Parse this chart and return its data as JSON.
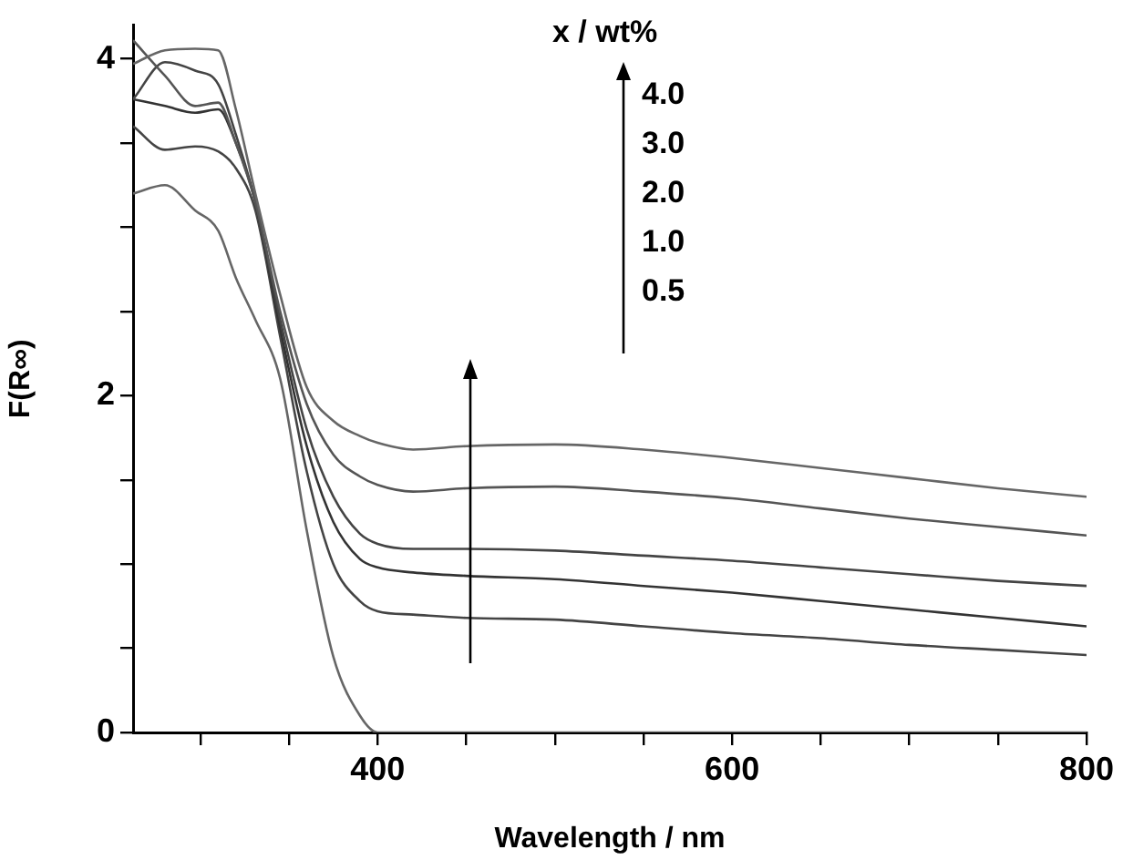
{
  "chart_data": {
    "type": "line",
    "xlabel": "Wavelength / nm",
    "ylabel": "F(R∞)",
    "x": [
      262,
      280,
      297,
      310,
      320,
      331,
      345,
      360,
      375,
      390,
      400,
      420,
      450,
      500,
      550,
      600,
      650,
      700,
      750,
      800
    ],
    "series": [
      {
        "color": "#666666",
        "values": [
          3.97,
          4.05,
          4.06,
          4.05,
          3.7,
          3.2,
          2.6,
          2.05,
          1.85,
          1.76,
          1.72,
          1.68,
          1.7,
          1.71,
          1.68,
          1.63,
          1.57,
          1.51,
          1.45,
          1.4
        ]
      },
      {
        "color": "#555555",
        "values": [
          4.11,
          3.9,
          3.72,
          3.74,
          3.5,
          3.15,
          2.5,
          1.95,
          1.65,
          1.52,
          1.47,
          1.43,
          1.45,
          1.46,
          1.43,
          1.39,
          1.33,
          1.27,
          1.22,
          1.17
        ]
      },
      {
        "color": "#444444",
        "values": [
          3.76,
          3.98,
          3.93,
          3.85,
          3.55,
          3.15,
          2.45,
          1.8,
          1.4,
          1.18,
          1.12,
          1.09,
          1.09,
          1.08,
          1.05,
          1.02,
          0.98,
          0.94,
          0.9,
          0.87
        ]
      },
      {
        "color": "#333333",
        "values": [
          3.76,
          3.72,
          3.68,
          3.7,
          3.5,
          3.15,
          2.4,
          1.7,
          1.25,
          1.03,
          0.98,
          0.95,
          0.93,
          0.91,
          0.87,
          0.83,
          0.78,
          0.73,
          0.68,
          0.63
        ]
      },
      {
        "color": "#444444",
        "values": [
          3.6,
          3.46,
          3.48,
          3.45,
          3.35,
          3.1,
          2.35,
          1.55,
          1.0,
          0.78,
          0.72,
          0.7,
          0.68,
          0.67,
          0.63,
          0.59,
          0.56,
          0.52,
          0.49,
          0.46
        ]
      },
      {
        "color": "#666666",
        "values": [
          3.2,
          3.25,
          3.1,
          2.98,
          2.7,
          2.45,
          2.1,
          1.2,
          0.45,
          0.1,
          0.0,
          0.0,
          0.0,
          0.0,
          0.0,
          0.0,
          0.0,
          0.0,
          0.0,
          0.0
        ]
      }
    ],
    "xlim": [
      262,
      800
    ],
    "xticks": [
      {
        "value": 300,
        "label": null
      },
      {
        "value": 350,
        "label": null
      },
      400,
      {
        "value": 450,
        "label": null
      },
      {
        "value": 500,
        "label": null
      },
      {
        "value": 550,
        "label": null
      },
      600,
      {
        "value": 650,
        "label": null
      },
      {
        "value": 700,
        "label": null
      },
      {
        "value": 750,
        "label": null
      },
      800
    ],
    "ylim": [
      0,
      4.2
    ],
    "yticks": [
      0,
      {
        "value": 0.5,
        "label": null
      },
      {
        "value": 1,
        "label": null
      },
      {
        "value": 1.5,
        "label": null
      },
      2,
      {
        "value": 2.5,
        "label": null
      },
      {
        "value": 3,
        "label": null
      },
      {
        "value": 3.5,
        "label": null
      },
      4
    ],
    "annotations": [
      "x / wt%",
      "4.0",
      "3.0",
      "2.0",
      "1.0",
      "0.5"
    ],
    "grid": false,
    "legend": false,
    "marker": "none",
    "line_style": "solid"
  }
}
